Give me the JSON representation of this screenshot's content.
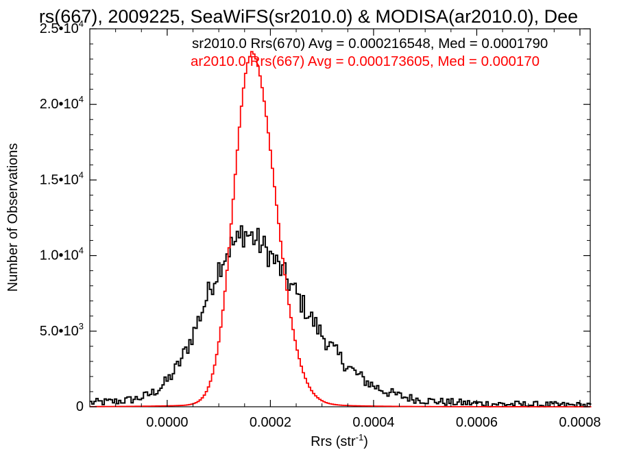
{
  "chart_data": {
    "type": "histogram",
    "title": "rs(667), 2009225, SeaWiFS(sr2010.0) & MODISA(ar2010.0), Dee",
    "xlabel": "Rrs (str",
    "xlabel_sup": "-1",
    "xlabel_end": ")",
    "ylabel": "Number of Observations",
    "xlim": [
      -0.00015,
      0.00082
    ],
    "ylim": [
      0,
      25000
    ],
    "x_ticks": [
      {
        "value": 0.0,
        "label": "0.0000"
      },
      {
        "value": 0.0002,
        "label": "0.0002"
      },
      {
        "value": 0.0004,
        "label": "0.0004"
      },
      {
        "value": 0.0006,
        "label": "0.0006"
      },
      {
        "value": 0.0008,
        "label": "0.0008"
      }
    ],
    "y_ticks": [
      {
        "value": 0,
        "base": "0",
        "exp": ""
      },
      {
        "value": 5000,
        "base": "5.0•10",
        "exp": "3"
      },
      {
        "value": 10000,
        "base": "1.0•10",
        "exp": "4"
      },
      {
        "value": 15000,
        "base": "1.5•10",
        "exp": "4"
      },
      {
        "value": 20000,
        "base": "2.0•10",
        "exp": "4"
      },
      {
        "value": 25000,
        "base": "2.5•10",
        "exp": "4"
      }
    ],
    "grid": false,
    "legend_position": "top-right",
    "series": [
      {
        "name": "sr2010.0 Rrs(670)",
        "legend_text": "sr2010.0 Rrs(670) Avg = 0.000216548, Med = 0.0001790",
        "color": "#000000",
        "bin_width": 4e-06,
        "peak": {
          "x": 0.00014,
          "y": 10000
        },
        "shape": {
          "left_width": 6.8e-05,
          "right_width": 0.000118,
          "tail_amp": 1600,
          "tail_width": 0.00023
        },
        "noise": 900,
        "x_start": -0.00015,
        "x_end": 0.00082
      },
      {
        "name": "ar2010.0 Rrs(667)",
        "legend_text": "ar2010.0 Rrs(667) Avg = 0.000173605, Med = 0.000170",
        "color": "#ff0000",
        "bin_width": 4e-06,
        "peak": {
          "x": 0.000163,
          "y": 22900
        },
        "shape": {
          "left_width": 3.4e-05,
          "right_width": 4.6e-05,
          "tail_amp": 600,
          "tail_width": 9e-05
        },
        "noise": 0,
        "x_start": -0.00015,
        "x_end": 0.00082
      }
    ]
  }
}
